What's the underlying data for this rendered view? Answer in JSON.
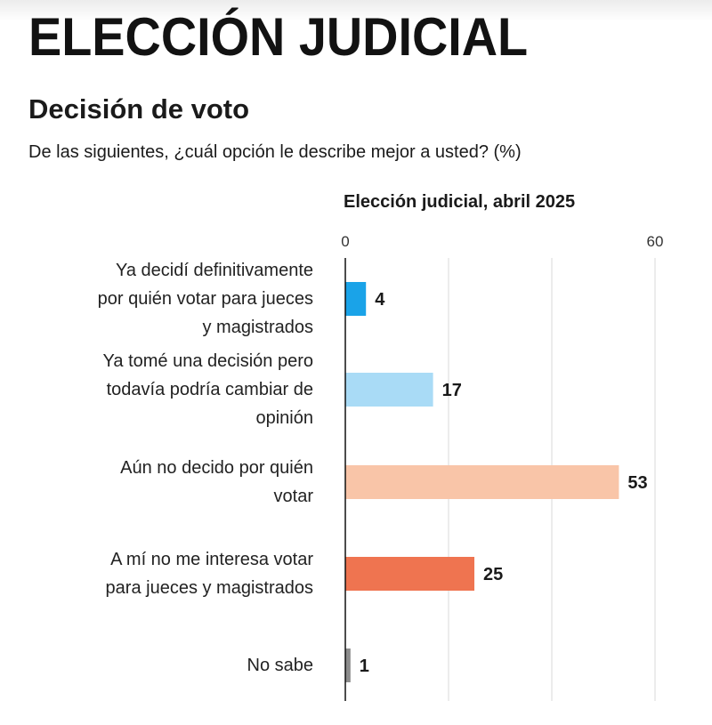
{
  "header": {
    "title": "ELECCIÓN JUDICIAL",
    "subtitle": "Decisión de voto",
    "question": "De las siguientes, ¿cuál opción le describe mejor a usted? (%)"
  },
  "chart_data": {
    "type": "bar",
    "orientation": "horizontal",
    "title": "Elección judicial, abril 2025",
    "xlim": [
      0,
      60
    ],
    "ticks": [
      0,
      60
    ],
    "grid": true,
    "categories": [
      "Ya decidí definitivamente por quién votar para jueces y magistrados",
      "Ya tomé una decisión pero todavía podría cambiar de opinión",
      "Aún no decido por quién votar",
      "A mí no me interesa votar para jueces y magistrados",
      "No sabe"
    ],
    "category_lines": [
      [
        "Ya decidí definitivamente",
        "por quién votar para jueces",
        "y magistrados"
      ],
      [
        "Ya tomé una decisión pero",
        "todavía podría cambiar de",
        "opinión"
      ],
      [
        "Aún no decido por quién",
        "votar"
      ],
      [
        "A mí no me interesa votar",
        "para jueces y magistrados"
      ],
      [
        "No sabe"
      ]
    ],
    "values": [
      4,
      17,
      53,
      25,
      1
    ],
    "colors": [
      "#1aa3e8",
      "#a9dbf6",
      "#f9c5a8",
      "#ef7450",
      "#8c8c8c"
    ]
  }
}
